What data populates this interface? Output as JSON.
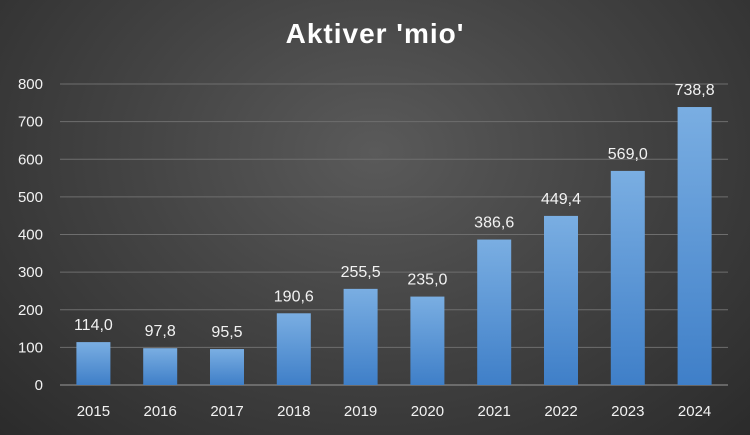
{
  "chart_data": {
    "type": "bar",
    "title": "Aktiver 'mio'",
    "categories": [
      "2015",
      "2016",
      "2017",
      "2018",
      "2019",
      "2020",
      "2021",
      "2022",
      "2023",
      "2024"
    ],
    "values": [
      114.0,
      97.8,
      95.5,
      190.6,
      255.5,
      235.0,
      386.6,
      449.4,
      569.0,
      738.8
    ],
    "data_labels": [
      "114,0",
      "97,8",
      "95,5",
      "190,6",
      "255,5",
      "235,0",
      "386,6",
      "449,4",
      "569,0",
      "738,8"
    ],
    "yticks": [
      "0",
      "100",
      "200",
      "300",
      "400",
      "500",
      "600",
      "700",
      "800"
    ],
    "ylim": [
      0,
      800
    ],
    "grid": true,
    "legend": "none",
    "colors": {
      "bar_top": "#7aaee2",
      "bar_bottom": "#3f7fc8",
      "grid": "#6e6e6e",
      "axis": "#9a9a9a"
    }
  }
}
